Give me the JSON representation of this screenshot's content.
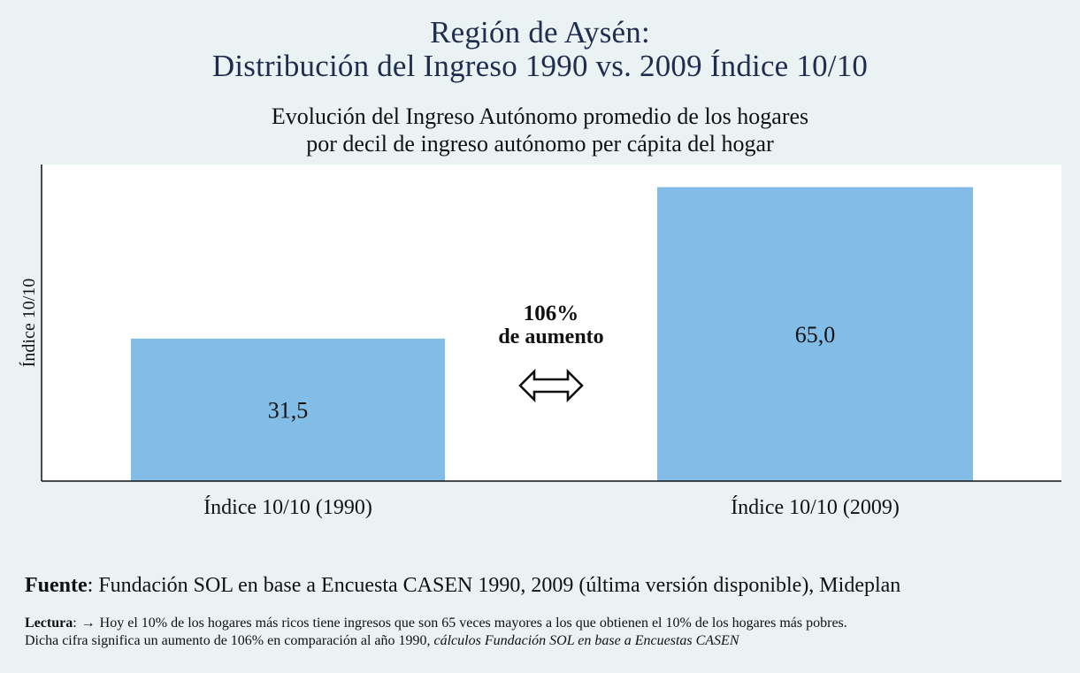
{
  "chart_data": {
    "type": "bar",
    "title": "Región de Aysén:",
    "title_line2": "Distribución del Ingreso 1990 vs. 2009 Índice 10/10",
    "subtitle_line1": "Evolución del Ingreso Autónomo promedio de los hogares",
    "subtitle_line2": "por decil de ingreso autónomo per cápita del hogar",
    "ylabel": "Índice 10/10",
    "categories": [
      "Índice 10/10 (1990)",
      "Índice 10/10 (2009)"
    ],
    "values": [
      31.5,
      65.0
    ],
    "value_labels": [
      "31,5",
      "65,0"
    ],
    "ylim": [
      0,
      70
    ],
    "grid": false,
    "annotations": [
      {
        "text": "106%",
        "bold": true
      },
      {
        "text": "de aumento",
        "bold": true
      }
    ],
    "arrow_symbol": "⇔",
    "bar_color": "#82bde8",
    "plot_bg": "#ffffff",
    "page_bg": "#eaf2f3",
    "title_color": "#1f2d4f"
  },
  "footer": {
    "source_label": "Fuente",
    "source_text": ": Fundación SOL en base a Encuesta CASEN 1990, 2009 (última versión disponible), Mideplan",
    "reading_label": "Lectura",
    "reading_colon": ":",
    "reading_arrow": "→",
    "reading_text_1": "Hoy el 10% de los hogares más ricos tiene ingresos que son 65 veces mayores a los que obtienen el 10% de los hogares más pobres.",
    "reading_text_2": "Dicha cifra significa un aumento de 106% en comparación al año 1990, ",
    "reading_italic": "cálculos Fundación SOL en base a Encuestas CASEN"
  }
}
